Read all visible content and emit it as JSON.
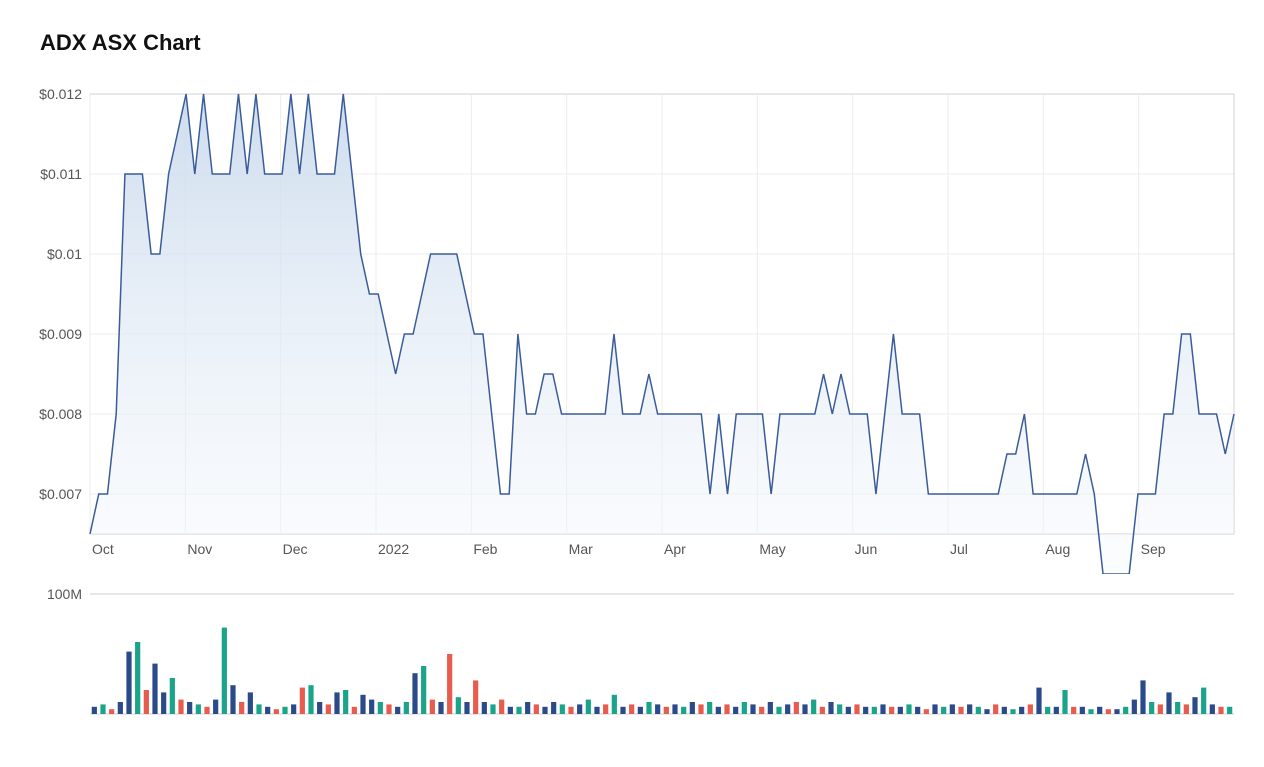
{
  "title": "ADX ASX Chart",
  "priceChart": {
    "type": "area",
    "stroke_color": "#3b5c9a",
    "fill_top_color": "#c9d9ec",
    "fill_bottom_color": "#f5f9fd",
    "fill_opacity": 0.9,
    "stroke_width": 1.5,
    "background_color": "#ffffff",
    "grid_color": "#ececec",
    "axis_border_color": "#d0d0d0",
    "label_color": "#555555",
    "label_fontsize": 14,
    "ylim": [
      0.0065,
      0.012
    ],
    "yticks": [
      0.007,
      0.008,
      0.009,
      0.01,
      0.011,
      0.012
    ],
    "ytick_labels": [
      "$0.007",
      "$0.008",
      "$0.009",
      "$0.01",
      "$0.011",
      "$0.012"
    ],
    "x_months": [
      "Oct",
      "Nov",
      "Dec",
      "2022",
      "Feb",
      "Mar",
      "Apr",
      "May",
      "Jun",
      "Jul",
      "Aug",
      "Sep"
    ],
    "data": [
      0.0065,
      0.007,
      0.007,
      0.008,
      0.011,
      0.011,
      0.011,
      0.01,
      0.01,
      0.011,
      0.0115,
      0.012,
      0.011,
      0.012,
      0.011,
      0.011,
      0.011,
      0.012,
      0.011,
      0.012,
      0.011,
      0.011,
      0.011,
      0.012,
      0.011,
      0.012,
      0.011,
      0.011,
      0.011,
      0.012,
      0.011,
      0.01,
      0.0095,
      0.0095,
      0.009,
      0.0085,
      0.009,
      0.009,
      0.0095,
      0.01,
      0.01,
      0.01,
      0.01,
      0.0095,
      0.009,
      0.009,
      0.008,
      0.007,
      0.007,
      0.009,
      0.008,
      0.008,
      0.0085,
      0.0085,
      0.008,
      0.008,
      0.008,
      0.008,
      0.008,
      0.008,
      0.009,
      0.008,
      0.008,
      0.008,
      0.0085,
      0.008,
      0.008,
      0.008,
      0.008,
      0.008,
      0.008,
      0.007,
      0.008,
      0.007,
      0.008,
      0.008,
      0.008,
      0.008,
      0.007,
      0.008,
      0.008,
      0.008,
      0.008,
      0.008,
      0.0085,
      0.008,
      0.0085,
      0.008,
      0.008,
      0.008,
      0.007,
      0.008,
      0.009,
      0.008,
      0.008,
      0.008,
      0.007,
      0.007,
      0.007,
      0.007,
      0.007,
      0.007,
      0.007,
      0.007,
      0.007,
      0.0075,
      0.0075,
      0.008,
      0.007,
      0.007,
      0.007,
      0.007,
      0.007,
      0.007,
      0.0075,
      0.007,
      0.006,
      0.006,
      0.006,
      0.006,
      0.007,
      0.007,
      0.007,
      0.008,
      0.008,
      0.009,
      0.009,
      0.008,
      0.008,
      0.008,
      0.0075,
      0.008
    ]
  },
  "volumeChart": {
    "type": "bar",
    "ylim": [
      0,
      100
    ],
    "ytick": 100,
    "ytick_label": "100M",
    "background_color": "#ffffff",
    "border_color": "#d0d0d0",
    "label_color": "#555555",
    "label_fontsize": 14,
    "colors": {
      "up": "#1aa58a",
      "down": "#e85b4f",
      "neutral": "#2a4a8a"
    },
    "bars": [
      {
        "v": 6,
        "c": "neutral"
      },
      {
        "v": 8,
        "c": "up"
      },
      {
        "v": 4,
        "c": "down"
      },
      {
        "v": 10,
        "c": "neutral"
      },
      {
        "v": 52,
        "c": "neutral"
      },
      {
        "v": 60,
        "c": "up"
      },
      {
        "v": 20,
        "c": "down"
      },
      {
        "v": 42,
        "c": "neutral"
      },
      {
        "v": 18,
        "c": "neutral"
      },
      {
        "v": 30,
        "c": "up"
      },
      {
        "v": 12,
        "c": "down"
      },
      {
        "v": 10,
        "c": "neutral"
      },
      {
        "v": 8,
        "c": "up"
      },
      {
        "v": 6,
        "c": "down"
      },
      {
        "v": 12,
        "c": "neutral"
      },
      {
        "v": 72,
        "c": "up"
      },
      {
        "v": 24,
        "c": "neutral"
      },
      {
        "v": 10,
        "c": "down"
      },
      {
        "v": 18,
        "c": "neutral"
      },
      {
        "v": 8,
        "c": "up"
      },
      {
        "v": 6,
        "c": "neutral"
      },
      {
        "v": 4,
        "c": "down"
      },
      {
        "v": 6,
        "c": "up"
      },
      {
        "v": 8,
        "c": "neutral"
      },
      {
        "v": 22,
        "c": "down"
      },
      {
        "v": 24,
        "c": "up"
      },
      {
        "v": 10,
        "c": "neutral"
      },
      {
        "v": 8,
        "c": "down"
      },
      {
        "v": 18,
        "c": "neutral"
      },
      {
        "v": 20,
        "c": "up"
      },
      {
        "v": 6,
        "c": "down"
      },
      {
        "v": 16,
        "c": "neutral"
      },
      {
        "v": 12,
        "c": "neutral"
      },
      {
        "v": 10,
        "c": "up"
      },
      {
        "v": 8,
        "c": "down"
      },
      {
        "v": 6,
        "c": "neutral"
      },
      {
        "v": 10,
        "c": "up"
      },
      {
        "v": 34,
        "c": "neutral"
      },
      {
        "v": 40,
        "c": "up"
      },
      {
        "v": 12,
        "c": "down"
      },
      {
        "v": 10,
        "c": "neutral"
      },
      {
        "v": 50,
        "c": "down"
      },
      {
        "v": 14,
        "c": "up"
      },
      {
        "v": 10,
        "c": "neutral"
      },
      {
        "v": 28,
        "c": "down"
      },
      {
        "v": 10,
        "c": "neutral"
      },
      {
        "v": 8,
        "c": "up"
      },
      {
        "v": 12,
        "c": "down"
      },
      {
        "v": 6,
        "c": "neutral"
      },
      {
        "v": 6,
        "c": "up"
      },
      {
        "v": 10,
        "c": "neutral"
      },
      {
        "v": 8,
        "c": "down"
      },
      {
        "v": 6,
        "c": "neutral"
      },
      {
        "v": 10,
        "c": "neutral"
      },
      {
        "v": 8,
        "c": "up"
      },
      {
        "v": 6,
        "c": "down"
      },
      {
        "v": 8,
        "c": "neutral"
      },
      {
        "v": 12,
        "c": "up"
      },
      {
        "v": 6,
        "c": "neutral"
      },
      {
        "v": 8,
        "c": "down"
      },
      {
        "v": 16,
        "c": "up"
      },
      {
        "v": 6,
        "c": "neutral"
      },
      {
        "v": 8,
        "c": "down"
      },
      {
        "v": 6,
        "c": "neutral"
      },
      {
        "v": 10,
        "c": "up"
      },
      {
        "v": 8,
        "c": "neutral"
      },
      {
        "v": 6,
        "c": "down"
      },
      {
        "v": 8,
        "c": "neutral"
      },
      {
        "v": 6,
        "c": "up"
      },
      {
        "v": 10,
        "c": "neutral"
      },
      {
        "v": 8,
        "c": "down"
      },
      {
        "v": 10,
        "c": "up"
      },
      {
        "v": 6,
        "c": "neutral"
      },
      {
        "v": 8,
        "c": "down"
      },
      {
        "v": 6,
        "c": "neutral"
      },
      {
        "v": 10,
        "c": "up"
      },
      {
        "v": 8,
        "c": "neutral"
      },
      {
        "v": 6,
        "c": "down"
      },
      {
        "v": 10,
        "c": "neutral"
      },
      {
        "v": 6,
        "c": "up"
      },
      {
        "v": 8,
        "c": "neutral"
      },
      {
        "v": 10,
        "c": "down"
      },
      {
        "v": 8,
        "c": "neutral"
      },
      {
        "v": 12,
        "c": "up"
      },
      {
        "v": 6,
        "c": "down"
      },
      {
        "v": 10,
        "c": "neutral"
      },
      {
        "v": 8,
        "c": "up"
      },
      {
        "v": 6,
        "c": "neutral"
      },
      {
        "v": 8,
        "c": "down"
      },
      {
        "v": 6,
        "c": "neutral"
      },
      {
        "v": 6,
        "c": "up"
      },
      {
        "v": 8,
        "c": "neutral"
      },
      {
        "v": 6,
        "c": "down"
      },
      {
        "v": 6,
        "c": "neutral"
      },
      {
        "v": 8,
        "c": "up"
      },
      {
        "v": 6,
        "c": "neutral"
      },
      {
        "v": 4,
        "c": "down"
      },
      {
        "v": 8,
        "c": "neutral"
      },
      {
        "v": 6,
        "c": "up"
      },
      {
        "v": 8,
        "c": "neutral"
      },
      {
        "v": 6,
        "c": "down"
      },
      {
        "v": 8,
        "c": "neutral"
      },
      {
        "v": 6,
        "c": "up"
      },
      {
        "v": 4,
        "c": "neutral"
      },
      {
        "v": 8,
        "c": "down"
      },
      {
        "v": 6,
        "c": "neutral"
      },
      {
        "v": 4,
        "c": "up"
      },
      {
        "v": 6,
        "c": "neutral"
      },
      {
        "v": 8,
        "c": "down"
      },
      {
        "v": 22,
        "c": "neutral"
      },
      {
        "v": 6,
        "c": "up"
      },
      {
        "v": 6,
        "c": "neutral"
      },
      {
        "v": 20,
        "c": "up"
      },
      {
        "v": 6,
        "c": "down"
      },
      {
        "v": 6,
        "c": "neutral"
      },
      {
        "v": 4,
        "c": "up"
      },
      {
        "v": 6,
        "c": "neutral"
      },
      {
        "v": 4,
        "c": "down"
      },
      {
        "v": 4,
        "c": "neutral"
      },
      {
        "v": 6,
        "c": "up"
      },
      {
        "v": 12,
        "c": "neutral"
      },
      {
        "v": 28,
        "c": "neutral"
      },
      {
        "v": 10,
        "c": "up"
      },
      {
        "v": 8,
        "c": "down"
      },
      {
        "v": 18,
        "c": "neutral"
      },
      {
        "v": 10,
        "c": "up"
      },
      {
        "v": 8,
        "c": "down"
      },
      {
        "v": 14,
        "c": "neutral"
      },
      {
        "v": 22,
        "c": "up"
      },
      {
        "v": 8,
        "c": "neutral"
      },
      {
        "v": 6,
        "c": "down"
      },
      {
        "v": 6,
        "c": "up"
      }
    ]
  }
}
